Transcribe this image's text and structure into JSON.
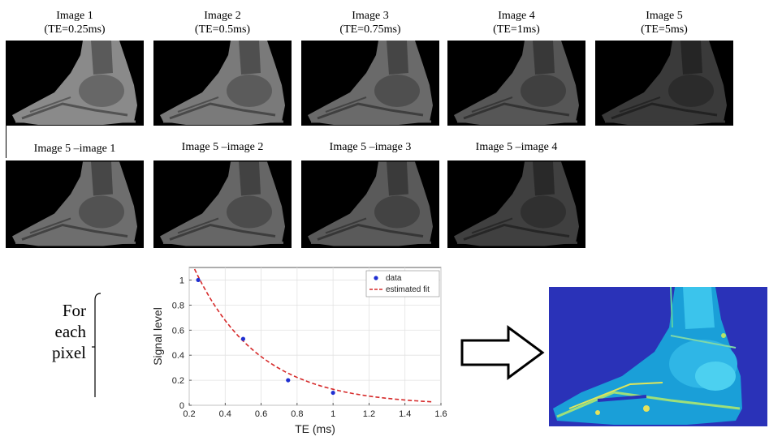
{
  "top_row": [
    {
      "title": "Image 1",
      "te": "(TE=0.25ms)"
    },
    {
      "title": "Image 2",
      "te": "(TE=0.5ms)"
    },
    {
      "title": "Image 3",
      "te": "(TE=0.75ms)"
    },
    {
      "title": "Image 4",
      "te": "(TE=1ms)"
    },
    {
      "title": "Image 5",
      "te": "(TE=5ms)"
    }
  ],
  "second_row": [
    {
      "title": "Image 5 –image 1"
    },
    {
      "title": "Image 5 –image 2"
    },
    {
      "title": "Image 5 –image 3"
    },
    {
      "title": "Image 5 –image 4"
    }
  ],
  "side_text": {
    "line1": "For",
    "line2": "each",
    "line3": "pixel"
  },
  "colors": {
    "data_point": "#1f2fd1",
    "fit_line": "#d62a2a",
    "map_bg": "#2a32b8"
  },
  "chart_data": {
    "type": "scatter",
    "title": "",
    "xlabel": "TE (ms)",
    "ylabel": "Signal level",
    "xlim": [
      0.2,
      1.6
    ],
    "ylim": [
      0,
      1.1
    ],
    "xticks": [
      "0.2",
      "0.4",
      "0.6",
      "0.8",
      "1",
      "1.2",
      "1.4",
      "1.6"
    ],
    "xtick_values": [
      0.2,
      0.4,
      0.6,
      0.8,
      1.0,
      1.2,
      1.4,
      1.6
    ],
    "yticks": [
      "0",
      "0.2",
      "0.4",
      "0.6",
      "0.8",
      "1"
    ],
    "ytick_values": [
      0,
      0.2,
      0.4,
      0.6,
      0.8,
      1.0
    ],
    "grid": true,
    "legend_position": "top-right",
    "series": [
      {
        "name": "data",
        "style": "markers",
        "x": [
          0.25,
          0.5,
          0.75,
          1.0
        ],
        "y": [
          1.0,
          0.53,
          0.2,
          0.1
        ]
      },
      {
        "name": "estimated fit",
        "style": "dashed-line",
        "model": "exponential",
        "a": 2.06,
        "b": 2.78,
        "x_start": 0.23,
        "x_end": 1.55
      }
    ]
  }
}
